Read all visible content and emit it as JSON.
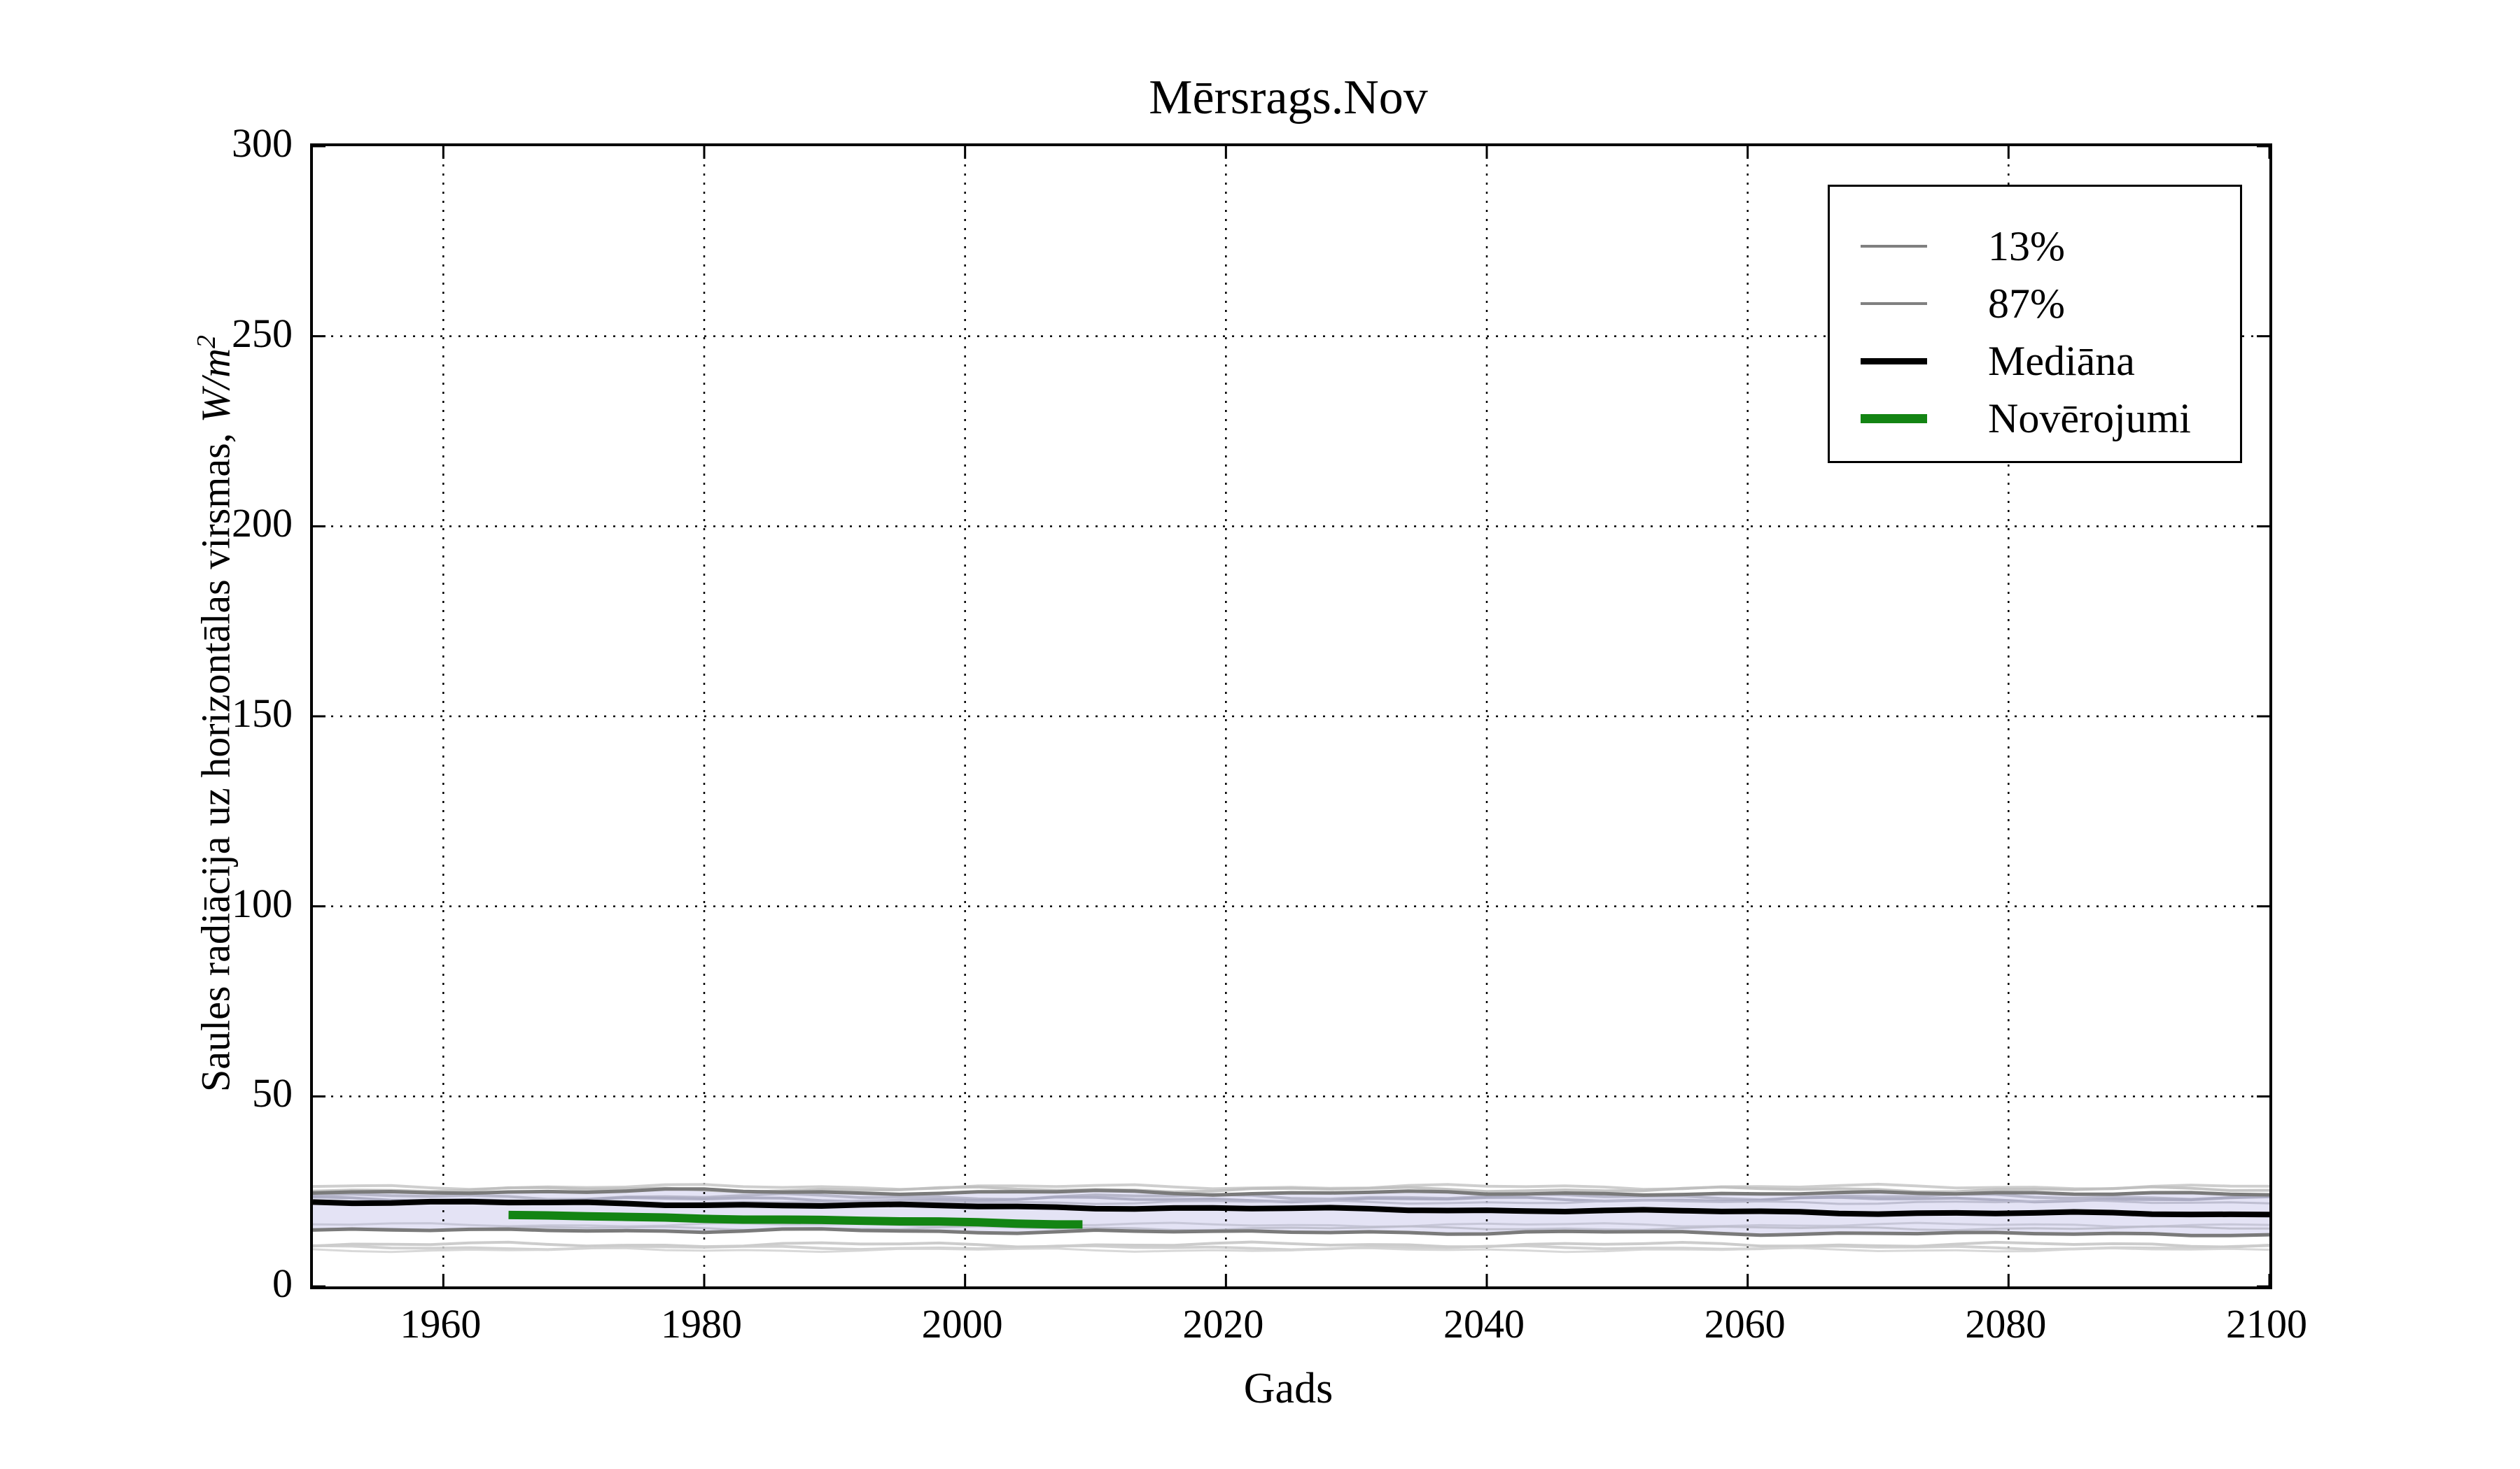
{
  "chart": {
    "title": "Mērsrags.Nov",
    "xlabel": "Gads",
    "ylabel_prefix": "Saules radiācija uz horizontālas virsmas, ",
    "ylabel_math": "W/m",
    "ylabel_sup": "2"
  },
  "legend": {
    "position": "upper right",
    "items": [
      {
        "label": "13%",
        "color": "#808080",
        "thickness": 4
      },
      {
        "label": "87%",
        "color": "#808080",
        "thickness": 4
      },
      {
        "label": "Mediāna",
        "color": "#000000",
        "thickness": 9
      },
      {
        "label": "Novērojumi",
        "color": "#138413",
        "thickness": 13
      }
    ]
  },
  "chart_data": {
    "type": "line",
    "title": "Mērsrags.Nov",
    "xlabel": "Gads",
    "ylabel": "Saules radiācija uz horizontālas virsmas, W/m²",
    "xlim": [
      1950,
      2100
    ],
    "ylim": [
      0,
      300
    ],
    "xticks": [
      1960,
      1980,
      2000,
      2020,
      2040,
      2060,
      2080,
      2100
    ],
    "yticks": [
      0,
      50,
      100,
      150,
      200,
      250,
      300
    ],
    "grid": "dotted",
    "grid_color": "#000000",
    "legend_position": "upper right",
    "band": {
      "lower_series": "13%",
      "upper_series": "87%",
      "fill_color": "#E4E3F5"
    },
    "series": [
      {
        "name": "13%",
        "color": "#7a7a7a",
        "width": 5,
        "wiggle": 0.35,
        "phase": 2.1,
        "x": [
          1950,
          1960,
          1970,
          1980,
          1990,
          2000,
          2010,
          2020,
          2030,
          2040,
          2050,
          2060,
          2070,
          2080,
          2090,
          2100
        ],
        "y": [
          14.9,
          14.6,
          15.0,
          14.5,
          14.8,
          14.3,
          14.7,
          14.1,
          14.5,
          14.0,
          14.3,
          13.9,
          14.1,
          13.7,
          14.0,
          13.6
        ]
      },
      {
        "name": "87%",
        "color": "#7a7a7a",
        "width": 5,
        "wiggle": 0.4,
        "phase": 0.6,
        "x": [
          1950,
          1960,
          1970,
          1980,
          1990,
          2000,
          2010,
          2020,
          2030,
          2040,
          2050,
          2060,
          2070,
          2080,
          2090,
          2100
        ],
        "y": [
          24.6,
          25.1,
          24.7,
          25.3,
          24.9,
          24.4,
          25.0,
          24.5,
          24.8,
          24.3,
          24.7,
          24.1,
          24.5,
          24.9,
          24.3,
          24.1
        ]
      },
      {
        "name": "Mediāna",
        "color": "#000000",
        "width": 8,
        "wiggle": 0.3,
        "phase": 4.2,
        "x": [
          1950,
          1960,
          1970,
          1980,
          1990,
          2000,
          2010,
          2020,
          2030,
          2040,
          2050,
          2060,
          2070,
          2080,
          2090,
          2100
        ],
        "y": [
          22.3,
          22.1,
          21.9,
          21.6,
          21.3,
          21.1,
          20.8,
          20.5,
          20.3,
          20.1,
          19.9,
          19.6,
          19.4,
          19.3,
          19.1,
          18.9
        ]
      },
      {
        "name": "Novērojumi",
        "color": "#138413",
        "width": 12,
        "wiggle": 0.15,
        "phase": 1.3,
        "x": [
          1965,
          1970,
          1975,
          1980,
          1985,
          1990,
          1995,
          2000,
          2005,
          2009
        ],
        "y": [
          18.6,
          18.5,
          18.2,
          17.9,
          17.7,
          17.4,
          17.1,
          16.8,
          16.5,
          16.3
        ]
      }
    ],
    "ensemble_lines": [
      {
        "level": 26.2,
        "amp": 0.5,
        "color": "#c9c9c9",
        "width": 4,
        "phase": 0.3
      },
      {
        "level": 25.5,
        "amp": 0.5,
        "color": "#bfbfbf",
        "width": 4,
        "phase": 1.1
      },
      {
        "level": 23.6,
        "amp": 0.6,
        "color": "#b2b2c6",
        "width": 4,
        "phase": 2.4
      },
      {
        "level": 22.9,
        "amp": 0.5,
        "color": "#a9a9c0",
        "width": 4,
        "phase": 3.0
      },
      {
        "level": 22.2,
        "amp": 0.4,
        "color": "#b9b9cd",
        "width": 3,
        "phase": 4.4
      },
      {
        "level": 16.2,
        "amp": 0.4,
        "color": "#c3c3d5",
        "width": 3,
        "phase": 5.2
      },
      {
        "level": 15.3,
        "amp": 0.4,
        "color": "#bcbccc",
        "width": 3,
        "phase": 0.9
      },
      {
        "level": 11.0,
        "amp": 0.5,
        "color": "#c6c6c6",
        "width": 4,
        "phase": 1.8
      },
      {
        "level": 10.2,
        "amp": 0.4,
        "color": "#cccccc",
        "width": 4,
        "phase": 2.9
      },
      {
        "level": 9.6,
        "amp": 0.4,
        "color": "#d4d4d4",
        "width": 3,
        "phase": 3.7
      }
    ]
  }
}
